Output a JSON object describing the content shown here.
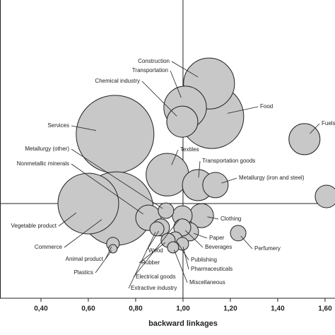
{
  "chart_data": {
    "type": "bubble",
    "x_label": "backward linkages",
    "labels": [
      "Construction",
      "Transportation",
      "Chemical industry",
      "Food",
      "Services",
      "Fuels",
      "Textiles",
      "Transportation goods",
      "Metallurgy (iron and steel)",
      "Vegetable product",
      "Commerce",
      "Nonmetallic minerals",
      "Metallurgy (other)",
      "Clothing",
      "Paper",
      "Beverages",
      "Perfumery",
      "Publishing",
      "Pharmaceuticals",
      "Miscellaneous",
      "Wood",
      "Rubber",
      "Electrical goods",
      "Extractive industry",
      "Animal product",
      "Plastics",
      null
    ],
    "x": [
      1.11,
      1.009,
      0.997,
      1.122,
      0.713,
      1.513,
      0.934,
      1.063,
      1.137,
      0.6,
      0.719,
      0.854,
      0.928,
      1.078,
      1.027,
      0.997,
      1.233,
      0.967,
      0.997,
      0.958,
      0.907,
      0.937,
      0.997,
      0.89,
      0.704,
      0.704,
      1.606
    ],
    "y": [
      1.507,
      1.406,
      1.346,
      1.367,
      1.293,
      1.272,
      1.122,
      1.078,
      1.078,
      1.0,
      0.979,
      0.94,
      0.97,
      0.949,
      0.881,
      0.899,
      0.875,
      0.851,
      0.83,
      0.815,
      0.899,
      0.845,
      0.949,
      0.893,
      0.83,
      0.809,
      1.03
    ],
    "sizes": [
      43,
      30,
      16,
      67,
      100,
      16,
      30,
      16,
      10.7,
      61,
      89,
      10.7,
      4,
      9.6,
      5.6,
      4.8,
      4,
      3.3,
      2.7,
      2.1,
      4.8,
      3.3,
      6.5,
      3.3,
      2.7,
      1.2,
      8.5
    ],
    "color": "#c8c8c8",
    "xlim": [
      0.227,
      1.642
    ],
    "ylim": [
      0.6,
      1.86
    ],
    "xticks": [
      {
        "value": 0.4,
        "label": "0,40"
      },
      {
        "value": 0.6,
        "label": "0,60"
      },
      {
        "value": 0.8,
        "label": "0,80"
      },
      {
        "value": 1.0,
        "label": "1,00"
      },
      {
        "value": 1.2,
        "label": "1,20"
      },
      {
        "value": 1.4,
        "label": "1,40"
      },
      {
        "value": 1.6,
        "label": "1,60"
      }
    ],
    "x_reference": 1.0,
    "y_reference": 1.0
  }
}
